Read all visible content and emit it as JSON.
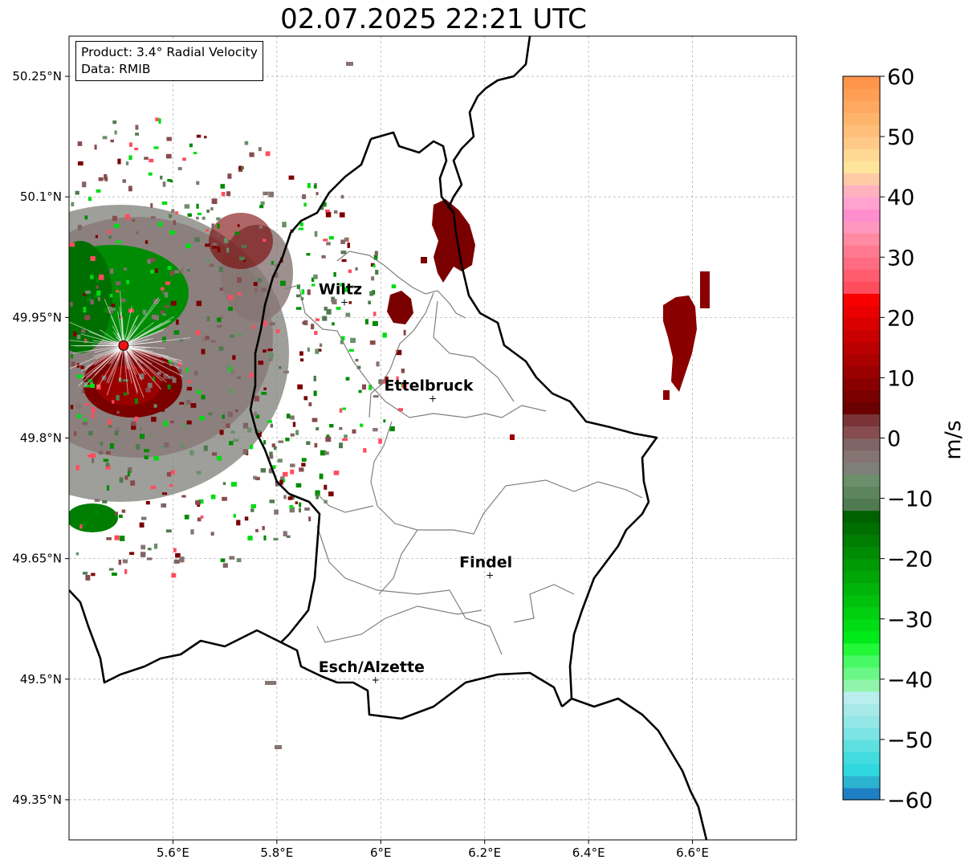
{
  "title": "02.07.2025 22:21 UTC",
  "info_box": {
    "product": "Product: 3.4° Radial Velocity",
    "data": "Data: RMIB"
  },
  "map": {
    "lon_range": [
      5.4,
      6.8
    ],
    "lat_range": [
      49.3,
      50.3
    ],
    "x_ticks": [
      "5.6°E",
      "5.8°E",
      "6°E",
      "6.2°E",
      "6.4°E",
      "6.6°E"
    ],
    "y_ticks": [
      "50.25°N",
      "50.1°N",
      "49.95°N",
      "49.8°N",
      "49.65°N",
      "49.5°N",
      "49.35°N"
    ],
    "gridlines": true,
    "cities": [
      {
        "name": "Wiltz",
        "lon": 5.93,
        "lat": 49.97
      },
      {
        "name": "Ettelbruck",
        "lon": 6.1,
        "lat": 49.85
      },
      {
        "name": "Findel",
        "lon": 6.21,
        "lat": 49.63
      },
      {
        "name": "Esch/Alzette",
        "lon": 5.99,
        "lat": 49.5
      }
    ],
    "radar_site": {
      "lon": 5.505,
      "lat": 49.915,
      "color": "#ee1111"
    }
  },
  "colorbar": {
    "label": "m/s",
    "range": [
      -60,
      60
    ],
    "ticks": [
      "60",
      "50",
      "40",
      "30",
      "20",
      "10",
      "0",
      "−10",
      "−20",
      "−30",
      "−40",
      "−50",
      "−60"
    ],
    "colors": [
      "#1f7fc4",
      "#2bb3cf",
      "#2ed8de",
      "#43dcde",
      "#5fe0e0",
      "#7ce4e4",
      "#93e7e6",
      "#a8eae9",
      "#baeeee",
      "#91f4ab",
      "#6af786",
      "#47f965",
      "#22f738",
      "#00ea19",
      "#00dd14",
      "#00d010",
      "#00c20d",
      "#00b40a",
      "#00a608",
      "#009906",
      "#008b04",
      "#007d03",
      "#006f02",
      "#006100",
      "#507a50",
      "#5d855d",
      "#6a8f6a",
      "#7e7f78",
      "#857472",
      "#7f6565",
      "#874c4f",
      "#7a3438",
      "#6a0000",
      "#7a0000",
      "#8a0000",
      "#9a0000",
      "#aa0000",
      "#ba0000",
      "#ca0000",
      "#da0000",
      "#ea0000",
      "#f80000",
      "#ff4d5e",
      "#ff5c6e",
      "#ff6b80",
      "#ff7a90",
      "#ff8aa2",
      "#ff97bf",
      "#ff8ecf",
      "#ffa2d0",
      "#ffb2bd",
      "#ffcba6",
      "#ffe59b",
      "#ffd896",
      "#ffca87",
      "#ffbf78",
      "#ffb46c",
      "#ffa960",
      "#ff9e55",
      "#ff944b"
    ]
  },
  "colors": {
    "dark_red": "#7a0000",
    "green": "#007d03",
    "gray_velocity": "#857472",
    "border": "#000000",
    "canton": "#808080"
  }
}
